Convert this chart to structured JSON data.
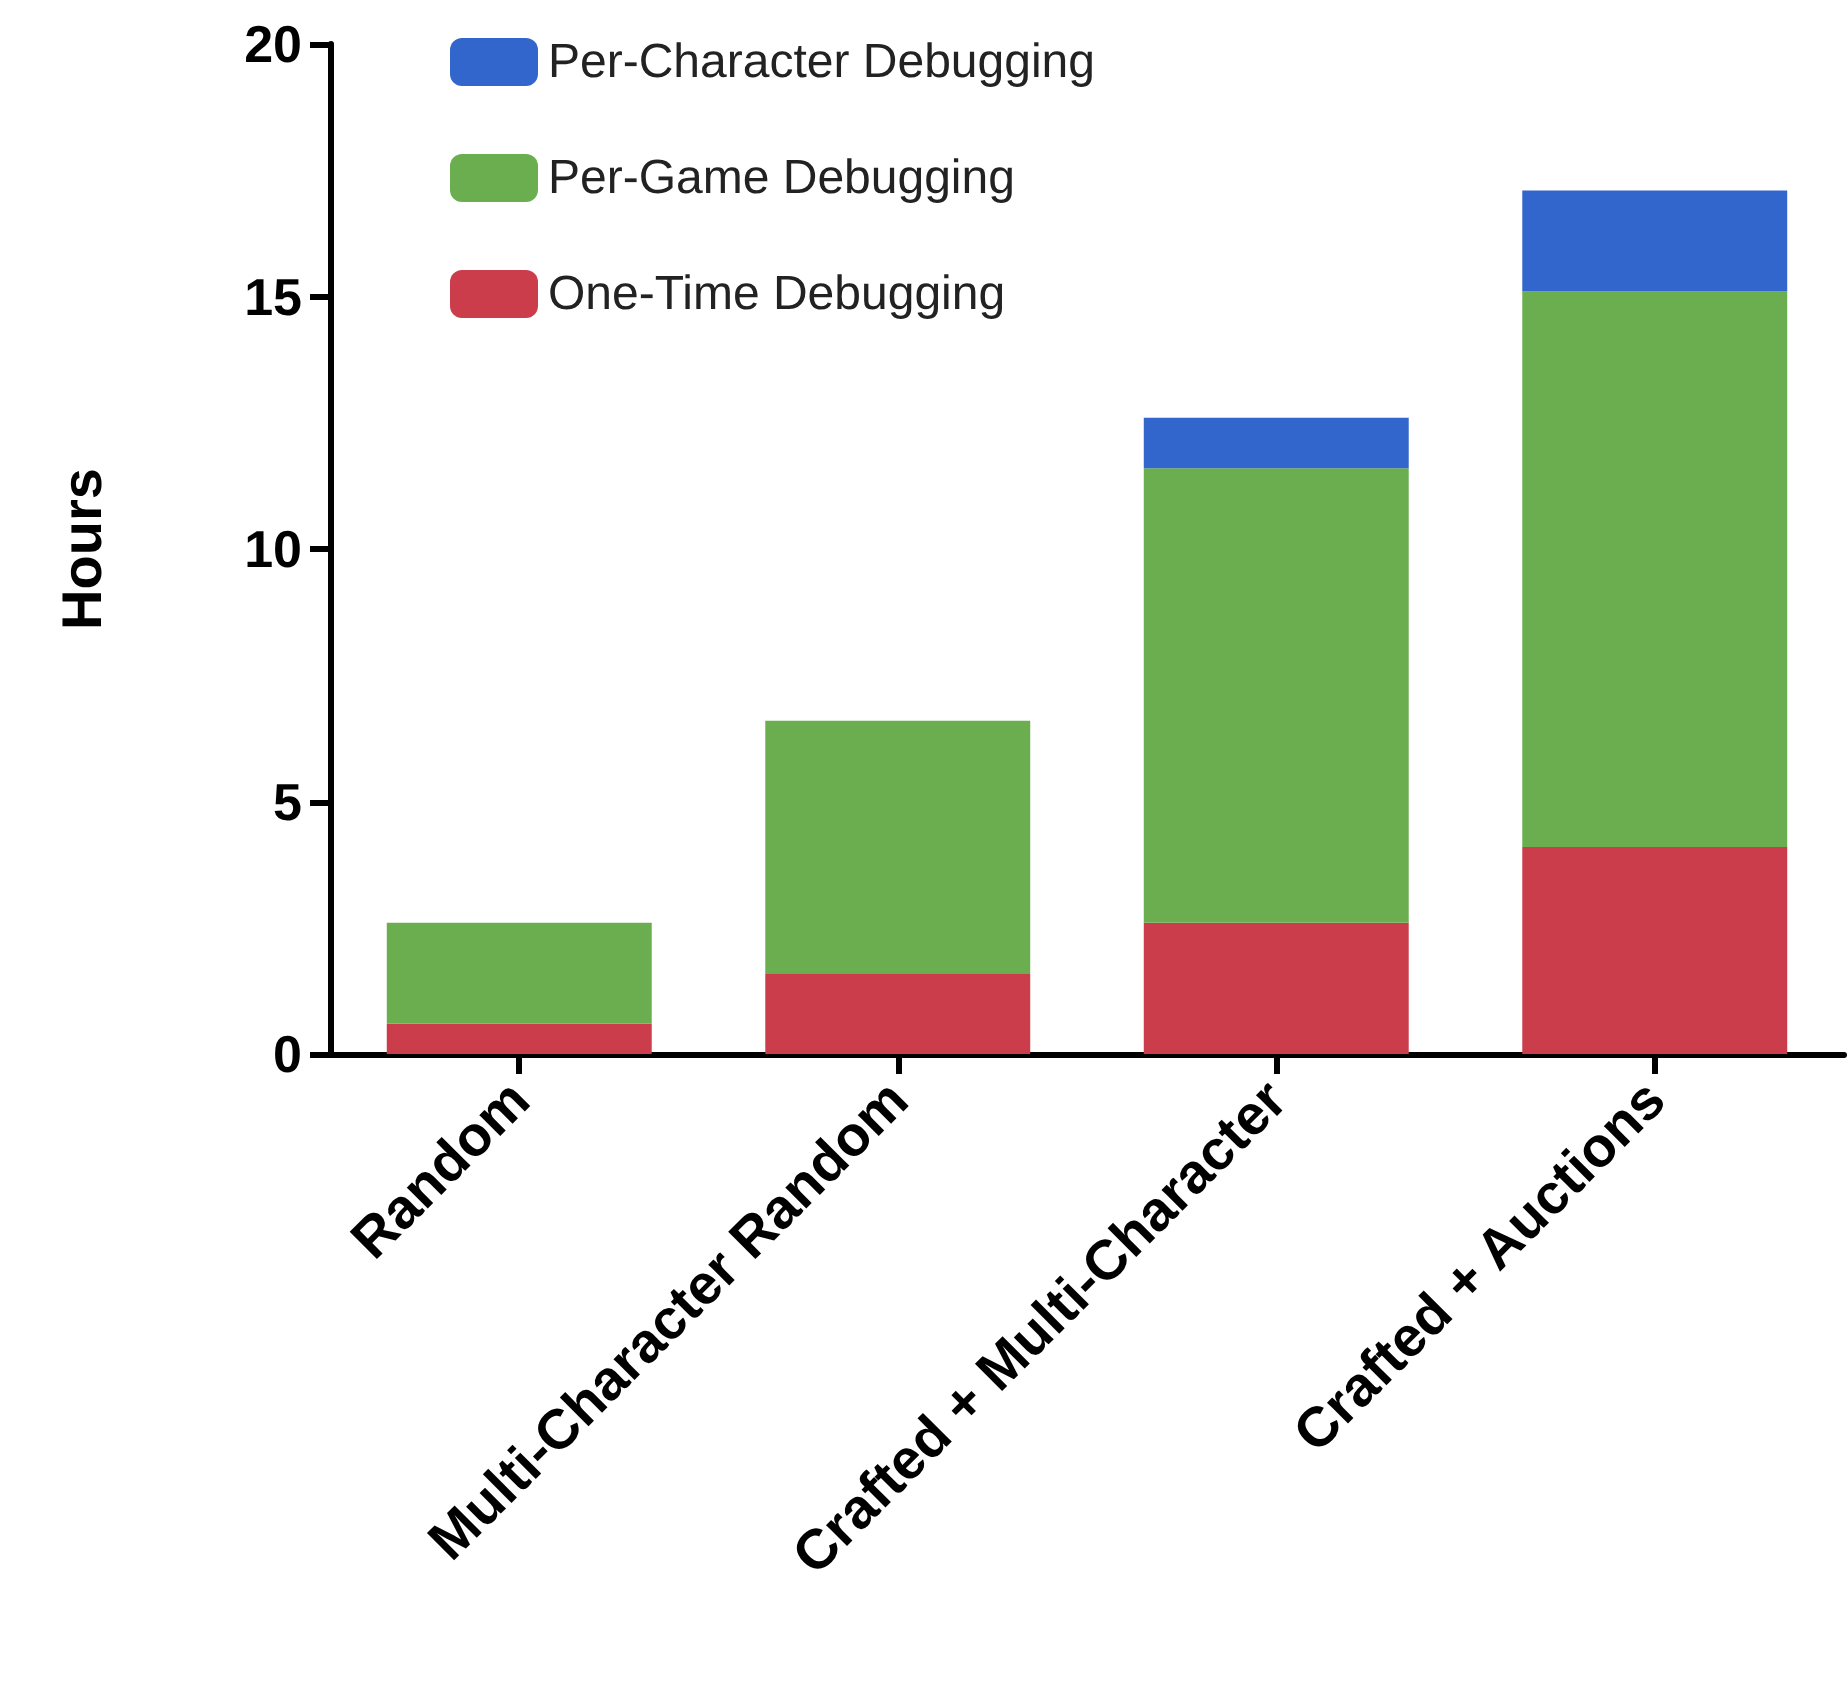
{
  "chart_data": {
    "type": "bar",
    "ylabel": "Hours",
    "categories": [
      "Random",
      "Multi-Character Random",
      "Crafted + Multi-Character",
      "Crafted + Auctions"
    ],
    "series": [
      {
        "name": "One-Time Debugging",
        "color": "#cc3d4b",
        "values": [
          0.6,
          1.6,
          2.6,
          4.1
        ]
      },
      {
        "name": "Per-Game Debugging",
        "color": "#6aae50",
        "values": [
          2.0,
          5.0,
          9.0,
          11.0
        ]
      },
      {
        "name": "Per-Character Debugging",
        "color": "#3366cc",
        "values": [
          null,
          null,
          1.0,
          2.0
        ]
      }
    ],
    "stacked": true,
    "ylim": [
      0,
      20
    ],
    "yticks": [
      0,
      5,
      10,
      15,
      20
    ],
    "grid": false,
    "legend": "top left"
  }
}
